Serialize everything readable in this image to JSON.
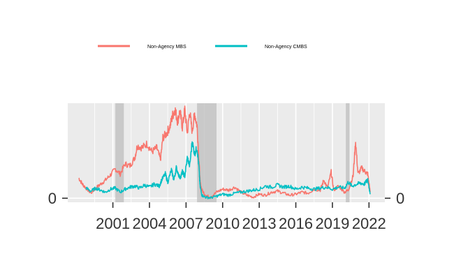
{
  "chart_data": {
    "type": "line",
    "title": "",
    "xlabel": "",
    "ylabel": "",
    "x_tick_labels": [
      "2001",
      "2004",
      "2007",
      "2010",
      "2013",
      "2016",
      "2019",
      "2022"
    ],
    "x_ticks": [
      2001,
      2004,
      2007,
      2010,
      2013,
      2016,
      2019,
      2022
    ],
    "xlim": [
      1997.3,
      2023.3
    ],
    "y_tick_labels": [
      "0"
    ],
    "y_ticks": [
      0
    ],
    "ylim": [
      -0.2,
      4.7
    ],
    "secondary_y_axis": true,
    "grid": true,
    "legend_position": "top",
    "recession_shading": [
      [
        2001.2,
        2001.9
      ],
      [
        2007.9,
        2009.5
      ],
      [
        2020.1,
        2020.4
      ]
    ],
    "series": [
      {
        "name": "Non-Agency MBS",
        "color": "#F8766D",
        "points": [
          [
            1998.2,
            1.0
          ],
          [
            1998.5,
            0.7
          ],
          [
            1998.8,
            0.5
          ],
          [
            1999.2,
            0.25
          ],
          [
            1999.6,
            0.5
          ],
          [
            2000.0,
            0.7
          ],
          [
            2000.4,
            0.9
          ],
          [
            2000.8,
            1.15
          ],
          [
            2001.2,
            1.45
          ],
          [
            2001.6,
            1.2
          ],
          [
            2002.0,
            1.7
          ],
          [
            2002.4,
            1.6
          ],
          [
            2002.8,
            2.0
          ],
          [
            2003.0,
            2.6
          ],
          [
            2003.4,
            2.5
          ],
          [
            2003.8,
            2.7
          ],
          [
            2004.2,
            2.3
          ],
          [
            2004.6,
            2.5
          ],
          [
            2004.9,
            1.9
          ],
          [
            2005.1,
            3.0
          ],
          [
            2005.4,
            3.2
          ],
          [
            2005.7,
            3.6
          ],
          [
            2005.9,
            4.1
          ],
          [
            2006.1,
            4.4
          ],
          [
            2006.3,
            3.8
          ],
          [
            2006.5,
            4.3
          ],
          [
            2006.7,
            3.5
          ],
          [
            2006.9,
            4.4
          ],
          [
            2007.1,
            3.2
          ],
          [
            2007.3,
            4.3
          ],
          [
            2007.5,
            3.3
          ],
          [
            2007.7,
            4.2
          ],
          [
            2007.9,
            3.6
          ],
          [
            2008.05,
            2.0
          ],
          [
            2008.15,
            0.8
          ],
          [
            2008.3,
            0.4
          ],
          [
            2008.6,
            0.15
          ],
          [
            2009.0,
            0.05
          ],
          [
            2009.5,
            0.3
          ],
          [
            2010.0,
            0.45
          ],
          [
            2010.5,
            0.4
          ],
          [
            2011.0,
            0.55
          ],
          [
            2011.5,
            0.3
          ],
          [
            2012.0,
            0.15
          ],
          [
            2012.5,
            0.05
          ],
          [
            2013.0,
            0.2
          ],
          [
            2013.5,
            0.15
          ],
          [
            2014.0,
            0.3
          ],
          [
            2014.5,
            0.35
          ],
          [
            2015.0,
            0.25
          ],
          [
            2015.5,
            0.15
          ],
          [
            2016.0,
            0.2
          ],
          [
            2016.5,
            0.3
          ],
          [
            2017.0,
            0.25
          ],
          [
            2017.5,
            0.45
          ],
          [
            2018.0,
            0.4
          ],
          [
            2018.3,
            0.9
          ],
          [
            2018.6,
            0.5
          ],
          [
            2018.9,
            1.3
          ],
          [
            2019.1,
            0.4
          ],
          [
            2019.5,
            0.6
          ],
          [
            2020.0,
            0.3
          ],
          [
            2020.3,
            0.4
          ],
          [
            2020.7,
            1.1
          ],
          [
            2020.9,
            2.8
          ],
          [
            2021.1,
            1.2
          ],
          [
            2021.4,
            1.5
          ],
          [
            2021.7,
            1.3
          ],
          [
            2021.9,
            1.2
          ],
          [
            2022.1,
            0.3
          ]
        ]
      },
      {
        "name": "Non-Agency CMBS",
        "color": "#00BFC4",
        "points": [
          [
            1998.8,
            0.5
          ],
          [
            1999.2,
            0.35
          ],
          [
            1999.6,
            0.5
          ],
          [
            2000.0,
            0.4
          ],
          [
            2000.4,
            0.3
          ],
          [
            2000.8,
            0.45
          ],
          [
            2001.2,
            0.5
          ],
          [
            2001.6,
            0.3
          ],
          [
            2002.0,
            0.45
          ],
          [
            2002.4,
            0.55
          ],
          [
            2002.8,
            0.6
          ],
          [
            2003.2,
            0.5
          ],
          [
            2003.6,
            0.65
          ],
          [
            2004.0,
            0.55
          ],
          [
            2004.4,
            0.7
          ],
          [
            2004.8,
            0.6
          ],
          [
            2005.0,
            0.9
          ],
          [
            2005.3,
            1.2
          ],
          [
            2005.5,
            0.8
          ],
          [
            2005.8,
            1.4
          ],
          [
            2006.0,
            0.9
          ],
          [
            2006.2,
            1.5
          ],
          [
            2006.5,
            1.0
          ],
          [
            2006.7,
            1.3
          ],
          [
            2006.9,
            1.1
          ],
          [
            2007.1,
            2.0
          ],
          [
            2007.3,
            1.6
          ],
          [
            2007.5,
            2.8
          ],
          [
            2007.7,
            2.2
          ],
          [
            2007.9,
            2.5
          ],
          [
            2008.05,
            1.6
          ],
          [
            2008.15,
            0.6
          ],
          [
            2008.3,
            0.15
          ],
          [
            2008.6,
            0.05
          ],
          [
            2009.0,
            0.02
          ],
          [
            2009.5,
            0.1
          ],
          [
            2010.0,
            0.2
          ],
          [
            2010.5,
            0.15
          ],
          [
            2011.0,
            0.25
          ],
          [
            2011.5,
            0.3
          ],
          [
            2012.0,
            0.35
          ],
          [
            2012.5,
            0.4
          ],
          [
            2013.0,
            0.45
          ],
          [
            2013.5,
            0.6
          ],
          [
            2014.0,
            0.55
          ],
          [
            2014.5,
            0.65
          ],
          [
            2015.0,
            0.55
          ],
          [
            2015.5,
            0.6
          ],
          [
            2016.0,
            0.45
          ],
          [
            2016.5,
            0.55
          ],
          [
            2017.0,
            0.5
          ],
          [
            2017.5,
            0.45
          ],
          [
            2018.0,
            0.5
          ],
          [
            2018.5,
            0.55
          ],
          [
            2019.0,
            0.45
          ],
          [
            2019.5,
            0.55
          ],
          [
            2020.0,
            0.5
          ],
          [
            2020.3,
            0.8
          ],
          [
            2020.6,
            0.6
          ],
          [
            2021.0,
            0.7
          ],
          [
            2021.3,
            0.75
          ],
          [
            2021.6,
            0.7
          ],
          [
            2021.9,
            0.9
          ],
          [
            2022.1,
            0.2
          ]
        ]
      }
    ]
  }
}
